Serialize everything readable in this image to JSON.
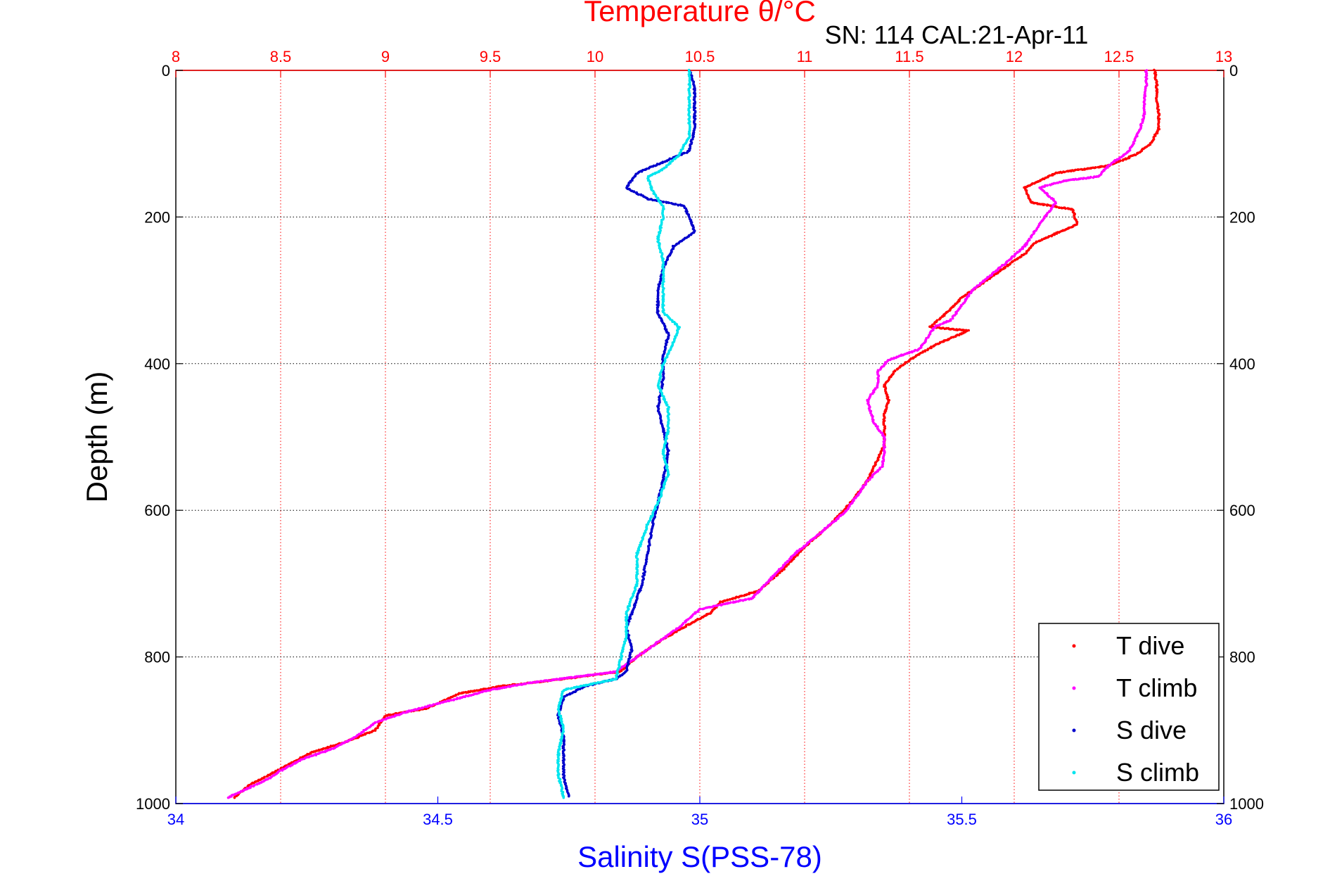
{
  "chart_data": {
    "type": "scatter",
    "title": "Temperature θ/°C",
    "subtitle": "SN: 114  CAL:21-Apr-11",
    "xlabel_top": "Temperature θ/°C",
    "xlabel_bottom": "Salinity S(PSS-78)",
    "ylabel": "Depth (m)",
    "x_top_lim": [
      8,
      13
    ],
    "x_top_ticks": [
      "8",
      "8.5",
      "9",
      "9.5",
      "10",
      "10.5",
      "11",
      "11.5",
      "12",
      "12.5",
      "13"
    ],
    "x_bottom_lim": [
      34,
      36
    ],
    "x_bottom_ticks": [
      "34",
      "34.5",
      "35",
      "35.5",
      "36"
    ],
    "y_lim": [
      0,
      1000
    ],
    "y_reversed": true,
    "y_ticks": [
      "0",
      "200",
      "400",
      "600",
      "800",
      "1000"
    ],
    "grid": true,
    "legend_position": "bottom-right",
    "colors": {
      "T dive": "#ff0000",
      "T climb": "#ff00ff",
      "S dive": "#0000cc",
      "S climb": "#00e5ee"
    },
    "series": [
      {
        "name": "T dive",
        "axis": "temperature",
        "points": [
          [
            12.67,
            0
          ],
          [
            12.68,
            20
          ],
          [
            12.68,
            40
          ],
          [
            12.69,
            60
          ],
          [
            12.69,
            80
          ],
          [
            12.65,
            100
          ],
          [
            12.58,
            115
          ],
          [
            12.45,
            130
          ],
          [
            12.2,
            140
          ],
          [
            12.05,
            160
          ],
          [
            12.08,
            180
          ],
          [
            12.28,
            190
          ],
          [
            12.3,
            210
          ],
          [
            12.18,
            225
          ],
          [
            12.1,
            235
          ],
          [
            12.05,
            250
          ],
          [
            11.95,
            270
          ],
          [
            11.85,
            290
          ],
          [
            11.75,
            310
          ],
          [
            11.68,
            330
          ],
          [
            11.6,
            350
          ],
          [
            11.78,
            355
          ],
          [
            11.62,
            375
          ],
          [
            11.5,
            395
          ],
          [
            11.43,
            410
          ],
          [
            11.38,
            430
          ],
          [
            11.4,
            450
          ],
          [
            11.38,
            470
          ],
          [
            11.38,
            490
          ],
          [
            11.38,
            510
          ],
          [
            11.35,
            530
          ],
          [
            11.3,
            560
          ],
          [
            11.22,
            590
          ],
          [
            11.12,
            620
          ],
          [
            11.0,
            650
          ],
          [
            10.9,
            680
          ],
          [
            10.78,
            710
          ],
          [
            10.6,
            725
          ],
          [
            10.55,
            740
          ],
          [
            10.42,
            760
          ],
          [
            10.3,
            780
          ],
          [
            10.2,
            800
          ],
          [
            10.12,
            820
          ],
          [
            9.85,
            830
          ],
          [
            9.55,
            840
          ],
          [
            9.35,
            850
          ],
          [
            9.2,
            870
          ],
          [
            9.0,
            880
          ],
          [
            8.95,
            900
          ],
          [
            8.82,
            915
          ],
          [
            8.65,
            930
          ],
          [
            8.55,
            945
          ],
          [
            8.45,
            960
          ],
          [
            8.35,
            975
          ],
          [
            8.28,
            992
          ]
        ]
      },
      {
        "name": "T climb",
        "axis": "temperature",
        "points": [
          [
            12.63,
            0
          ],
          [
            12.63,
            20
          ],
          [
            12.62,
            40
          ],
          [
            12.62,
            60
          ],
          [
            12.6,
            80
          ],
          [
            12.55,
            110
          ],
          [
            12.45,
            130
          ],
          [
            12.4,
            145
          ],
          [
            12.25,
            150
          ],
          [
            12.12,
            160
          ],
          [
            12.2,
            180
          ],
          [
            12.12,
            210
          ],
          [
            12.05,
            240
          ],
          [
            11.95,
            265
          ],
          [
            11.8,
            300
          ],
          [
            11.75,
            320
          ],
          [
            11.7,
            340
          ],
          [
            11.62,
            350
          ],
          [
            11.55,
            380
          ],
          [
            11.4,
            395
          ],
          [
            11.35,
            410
          ],
          [
            11.35,
            430
          ],
          [
            11.3,
            450
          ],
          [
            11.33,
            480
          ],
          [
            11.38,
            500
          ],
          [
            11.38,
            520
          ],
          [
            11.37,
            540
          ],
          [
            11.3,
            560
          ],
          [
            11.2,
            600
          ],
          [
            11.08,
            630
          ],
          [
            10.95,
            660
          ],
          [
            10.85,
            690
          ],
          [
            10.75,
            720
          ],
          [
            10.5,
            735
          ],
          [
            10.4,
            760
          ],
          [
            10.25,
            790
          ],
          [
            10.1,
            820
          ],
          [
            9.7,
            835
          ],
          [
            9.5,
            845
          ],
          [
            9.3,
            860
          ],
          [
            9.1,
            875
          ],
          [
            8.95,
            890
          ],
          [
            8.85,
            910
          ],
          [
            8.75,
            925
          ],
          [
            8.6,
            940
          ],
          [
            8.5,
            955
          ],
          [
            8.45,
            965
          ],
          [
            8.3,
            985
          ],
          [
            8.25,
            992
          ]
        ]
      },
      {
        "name": "S dive",
        "axis": "salinity",
        "points": [
          [
            34.98,
            0
          ],
          [
            34.99,
            20
          ],
          [
            34.99,
            50
          ],
          [
            34.99,
            80
          ],
          [
            34.98,
            110
          ],
          [
            34.93,
            125
          ],
          [
            34.88,
            140
          ],
          [
            34.86,
            160
          ],
          [
            34.9,
            175
          ],
          [
            34.97,
            185
          ],
          [
            34.98,
            200
          ],
          [
            34.99,
            220
          ],
          [
            34.95,
            240
          ],
          [
            34.93,
            270
          ],
          [
            34.92,
            300
          ],
          [
            34.92,
            330
          ],
          [
            34.94,
            360
          ],
          [
            34.93,
            390
          ],
          [
            34.93,
            420
          ],
          [
            34.92,
            460
          ],
          [
            34.93,
            490
          ],
          [
            34.94,
            520
          ],
          [
            34.93,
            560
          ],
          [
            34.92,
            590
          ],
          [
            34.91,
            620
          ],
          [
            34.9,
            660
          ],
          [
            34.89,
            700
          ],
          [
            34.87,
            740
          ],
          [
            34.86,
            760
          ],
          [
            34.87,
            790
          ],
          [
            34.86,
            820
          ],
          [
            34.84,
            830
          ],
          [
            34.78,
            840
          ],
          [
            34.74,
            855
          ],
          [
            34.73,
            880
          ],
          [
            34.74,
            910
          ],
          [
            34.74,
            940
          ],
          [
            34.74,
            965
          ],
          [
            34.75,
            990
          ]
        ]
      },
      {
        "name": "S climb",
        "axis": "salinity",
        "points": [
          [
            34.98,
            0
          ],
          [
            34.98,
            30
          ],
          [
            34.98,
            60
          ],
          [
            34.98,
            90
          ],
          [
            34.96,
            115
          ],
          [
            34.93,
            135
          ],
          [
            34.9,
            145
          ],
          [
            34.91,
            165
          ],
          [
            34.93,
            185
          ],
          [
            34.93,
            200
          ],
          [
            34.92,
            230
          ],
          [
            34.93,
            260
          ],
          [
            34.93,
            300
          ],
          [
            34.93,
            330
          ],
          [
            34.96,
            350
          ],
          [
            34.95,
            370
          ],
          [
            34.93,
            400
          ],
          [
            34.92,
            430
          ],
          [
            34.94,
            460
          ],
          [
            34.94,
            490
          ],
          [
            34.93,
            520
          ],
          [
            34.94,
            550
          ],
          [
            34.92,
            590
          ],
          [
            34.9,
            620
          ],
          [
            34.88,
            660
          ],
          [
            34.88,
            700
          ],
          [
            34.86,
            740
          ],
          [
            34.86,
            770
          ],
          [
            34.85,
            800
          ],
          [
            34.84,
            830
          ],
          [
            34.74,
            845
          ],
          [
            34.73,
            870
          ],
          [
            34.74,
            900
          ],
          [
            34.73,
            930
          ],
          [
            34.73,
            960
          ],
          [
            34.74,
            992
          ]
        ]
      }
    ]
  }
}
